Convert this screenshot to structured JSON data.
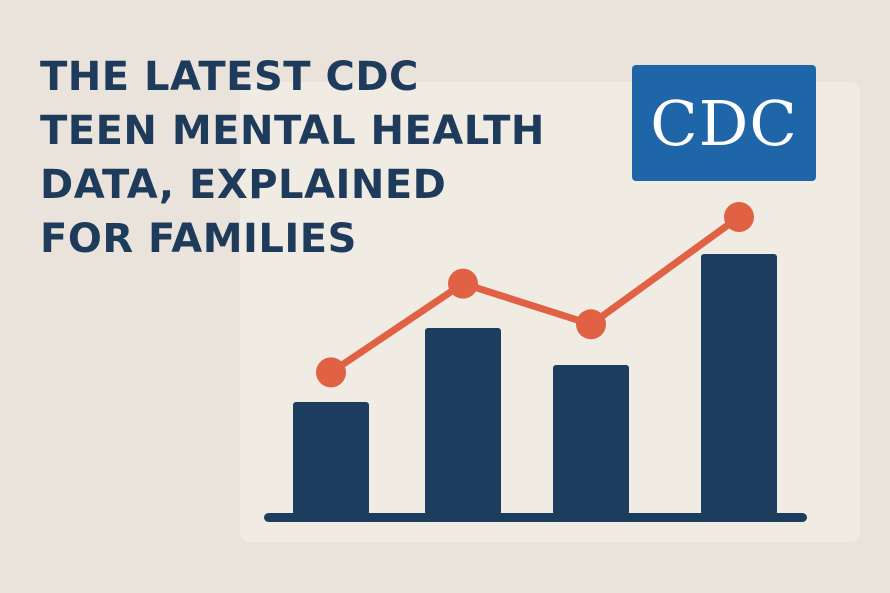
{
  "headline": {
    "lines": [
      "THE LATEST CDC",
      "TEEN MENTAL HEALTH",
      "DATA, EXPLAINED",
      "FOR FAMILIES"
    ]
  },
  "logo": {
    "text": "CDC",
    "color": "#1f66a8"
  },
  "colors": {
    "background": "#e9e3db",
    "panel": "#f0ebe3",
    "bar": "#1d3d5e",
    "line": "#e06144",
    "text": "#1e3b5c"
  },
  "chart_data": {
    "type": "bar",
    "bar_values": [
      30,
      50,
      40,
      70
    ],
    "line_values": [
      38,
      62,
      51,
      80
    ],
    "ylim": [
      0,
      100
    ]
  }
}
